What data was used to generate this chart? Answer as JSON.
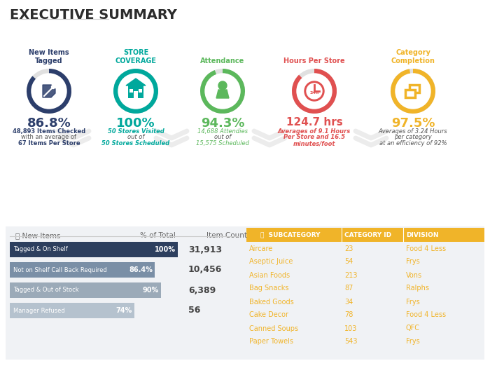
{
  "title": "EXECUTIVE SUMMARY",
  "bg_color": "#ffffff",
  "kpis": [
    {
      "label": "New Items\nTagged",
      "value": "86.8%",
      "sub_lines": [
        {
          "text": "48,893 Items Checked",
          "bold": true,
          "color": "#2c3e6b"
        },
        {
          "text": "with an average of",
          "bold": false,
          "color": "#555555"
        },
        {
          "text": "67 Items Per Store",
          "bold": true,
          "color": "#2c3e6b"
        }
      ],
      "ring_color": "#2c3e6b",
      "ring_pct": 0.868,
      "label_color": "#2c3e6b",
      "value_color": "#2c3e6b",
      "value_size": 13
    },
    {
      "label": "STORE\nCOVERAGE",
      "value": "100%",
      "sub_lines": [
        {
          "text": "50 Stores Visited",
          "bold": true,
          "color": "#00a89c",
          "italic": true
        },
        {
          "text": "out of",
          "bold": false,
          "color": "#555555",
          "italic": true
        },
        {
          "text": "50 Stores Scheduled",
          "bold": true,
          "color": "#00a89c",
          "italic": true
        }
      ],
      "ring_color": "#00a89c",
      "ring_pct": 1.0,
      "label_color": "#00a89c",
      "value_color": "#00a89c",
      "value_size": 13
    },
    {
      "label": "Attendance",
      "value": "94.3%",
      "sub_lines": [
        {
          "text": "14,688 Attendies",
          "bold": false,
          "color": "#5cb85c",
          "italic": true
        },
        {
          "text": "out of",
          "bold": false,
          "color": "#555555",
          "italic": true
        },
        {
          "text": "15,575 Scheduled",
          "bold": false,
          "color": "#5cb85c",
          "italic": true
        }
      ],
      "ring_color": "#5cb85c",
      "ring_pct": 0.943,
      "label_color": "#5cb85c",
      "value_color": "#5cb85c",
      "value_size": 13
    },
    {
      "label": "Hours Per Store",
      "value": "124.7 hrs",
      "sub_lines": [
        {
          "text": "Averages of 9.1 Hours",
          "bold": true,
          "color": "#e05050",
          "italic": true
        },
        {
          "text": "Per Store and 16.5",
          "bold": true,
          "color": "#e05050",
          "italic": true
        },
        {
          "text": "minutes/foot",
          "bold": true,
          "color": "#e05050",
          "italic": true
        }
      ],
      "ring_color": "#e05050",
      "ring_pct": 0.88,
      "label_color": "#e05050",
      "value_color": "#e05050",
      "value_size": 11
    },
    {
      "label": "Category\nCompletion",
      "value": "97.5%",
      "sub_lines": [
        {
          "text": "Averages of 3.24 Hours",
          "bold": false,
          "color": "#555555",
          "italic": true
        },
        {
          "text": "per category",
          "bold": false,
          "color": "#555555",
          "italic": true
        },
        {
          "text": "at an efficiency of 92%",
          "bold": false,
          "color": "#555555",
          "italic": true,
          "highlight": "efficiency of 92%",
          "highlight_color": "#f0b429"
        }
      ],
      "ring_color": "#f0b429",
      "ring_pct": 0.975,
      "label_color": "#f0b429",
      "value_color": "#f0b429",
      "value_size": 13
    }
  ],
  "bar_rows": [
    {
      "label": "Tagged & On Shelf",
      "pct": 1.0,
      "pct_label": "100%",
      "count": "31,913",
      "bar_color": "#2d3f5e",
      "text_color": "#ffffff"
    },
    {
      "label": "Not on Shelf Call Back Required",
      "pct": 0.864,
      "pct_label": "86.4%",
      "count": "10,456",
      "bar_color": "#7a8fa6",
      "text_color": "#ffffff"
    },
    {
      "label": "Tagged & Out of Stock",
      "pct": 0.9,
      "pct_label": "90%",
      "count": "6,389",
      "bar_color": "#9baab8",
      "text_color": "#ffffff"
    },
    {
      "label": "Manager Refused",
      "pct": 0.74,
      "pct_label": "74%",
      "count": "56",
      "bar_color": "#b5c2ce",
      "text_color": "#ffffff"
    }
  ],
  "table_header": [
    "SUBCATEGORY",
    "CATEGORY ID",
    "DIVISION"
  ],
  "table_header_color": "#f0b429",
  "table_rows": [
    [
      "Aircare",
      "23",
      "Food 4 Less"
    ],
    [
      "Aseptic Juice",
      "54",
      "Frys"
    ],
    [
      "Asian Foods",
      "213",
      "Vons"
    ],
    [
      "Bag Snacks",
      "87",
      "Ralphs"
    ],
    [
      "Baked Goods",
      "34",
      "Frys"
    ],
    [
      "Cake Decor",
      "78",
      "Food 4 Less"
    ],
    [
      "Canned Soups",
      "103",
      "QFC"
    ],
    [
      "Paper Towels",
      "543",
      "Frys"
    ]
  ],
  "table_text_color": "#f0b429"
}
